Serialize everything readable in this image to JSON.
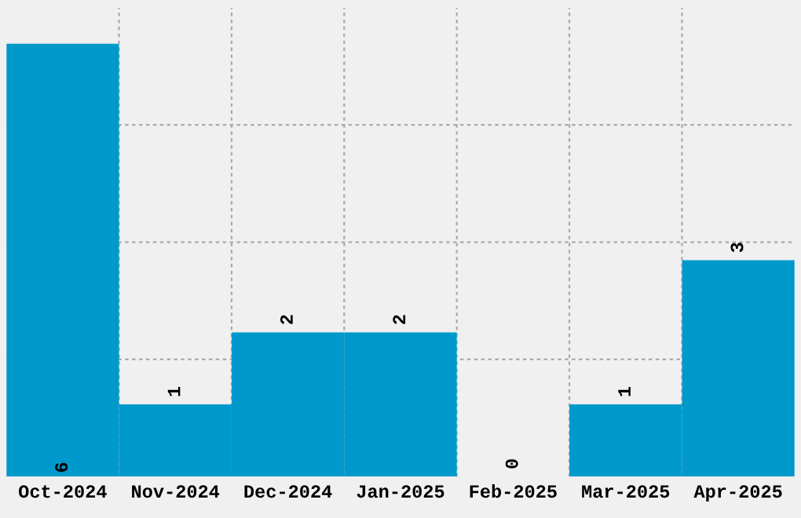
{
  "chart_data": {
    "type": "bar",
    "categories": [
      "Oct-2024",
      "Nov-2024",
      "Dec-2024",
      "Jan-2025",
      "Feb-2025",
      "Mar-2025",
      "Apr-2025"
    ],
    "values": [
      6,
      1,
      2,
      2,
      0,
      1,
      3
    ],
    "color": "#0099cc",
    "data_labels": true,
    "ylim": [
      0,
      6.5
    ],
    "yticks": [
      {
        "value": 1.625,
        "label": null
      },
      {
        "value": 3.25,
        "label": null
      },
      {
        "value": 4.875,
        "label": null
      }
    ],
    "tick_labels": "x",
    "grid": true
  }
}
